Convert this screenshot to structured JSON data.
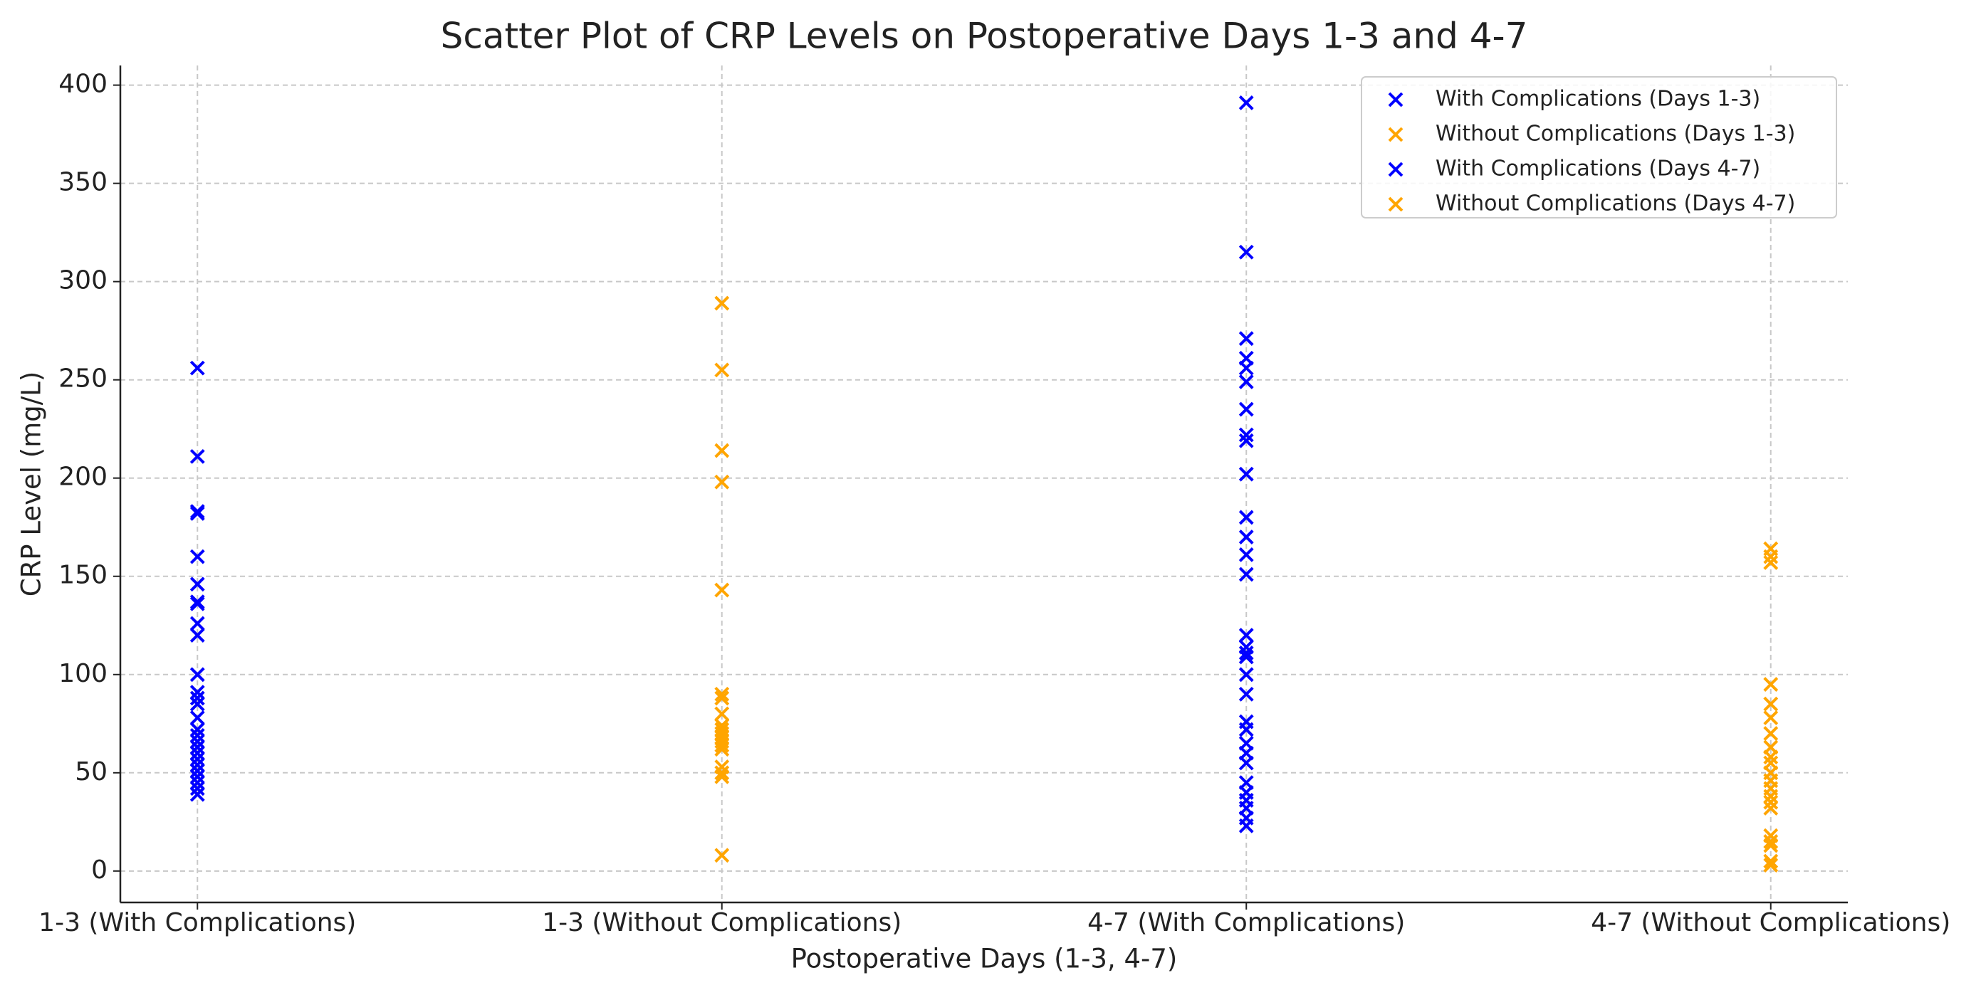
{
  "chart_data": {
    "type": "scatter",
    "title": "Scatter Plot of CRP Levels on Postoperative Days 1-3 and 4-7",
    "x_label": "Postoperative Days (1-3, 4-7)",
    "y_label": "CRP Level (mg/L)",
    "categories": [
      "1-3 (With Complications)",
      "1-3 (Without Complications)",
      "4-7 (With Complications)",
      "4-7 (Without Complications)"
    ],
    "series": [
      {
        "name": "With Complications (Days 1-3)",
        "color": "#0000ff",
        "values": [
          256,
          211,
          183,
          182,
          160,
          146,
          137,
          136,
          126,
          120,
          100,
          91,
          88,
          85,
          78,
          72,
          69,
          66,
          63,
          60,
          57,
          54,
          51,
          48,
          45,
          42,
          39
        ]
      },
      {
        "name": "Without Complications (Days 1-3)",
        "color": "#ffa500",
        "values": [
          289,
          255,
          214,
          198,
          143,
          90,
          88,
          80,
          74,
          72,
          70,
          68,
          66,
          64,
          62,
          53,
          50,
          48,
          8
        ]
      },
      {
        "name": "With Complications (Days 4-7)",
        "color": "#0000ff",
        "values": [
          391,
          315,
          271,
          261,
          256,
          249,
          235,
          222,
          219,
          202,
          180,
          170,
          161,
          151,
          120,
          114,
          111,
          109,
          100,
          90,
          76,
          72,
          65,
          60,
          55,
          45,
          40,
          36,
          32,
          27,
          23
        ]
      },
      {
        "name": "Without Complications (Days 4-7)",
        "color": "#ffa500",
        "values": [
          164,
          160,
          157,
          95,
          85,
          78,
          70,
          63,
          58,
          55,
          50,
          46,
          42,
          38,
          35,
          32,
          18,
          15,
          13,
          5,
          3
        ]
      }
    ],
    "ylim": [
      -16,
      410
    ],
    "yticks": [
      0,
      50,
      100,
      150,
      200,
      250,
      300,
      350,
      400
    ],
    "grid": true,
    "legend": "upper right",
    "marker": "x"
  }
}
